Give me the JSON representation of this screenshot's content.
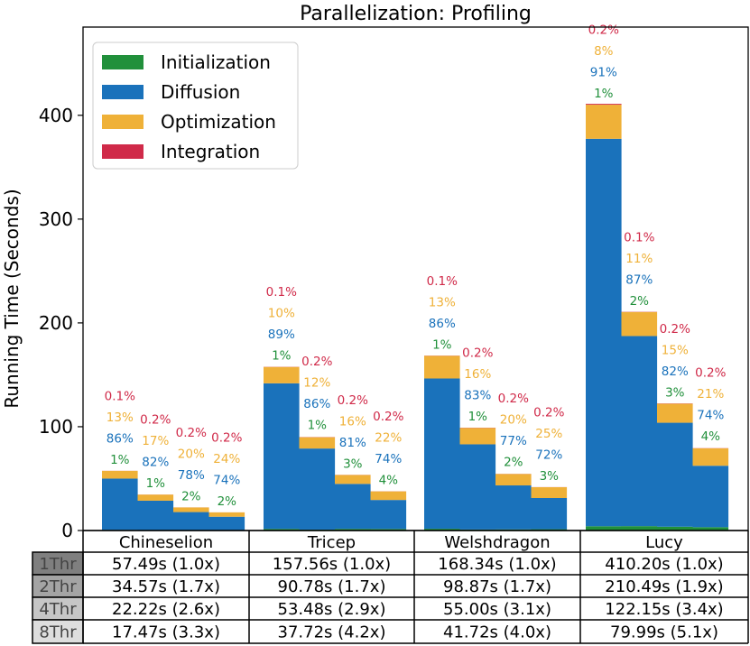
{
  "chart_data": {
    "type": "bar",
    "stacked": true,
    "title": "Parallelization: Profiling",
    "ylabel": "Running Time (Seconds)",
    "xlabel": "",
    "ylim": [
      0,
      485
    ],
    "yticks": [
      0,
      100,
      200,
      300,
      400
    ],
    "grid": false,
    "legend_position": "top-left",
    "colors": {
      "Initialization": "#21903b",
      "Diffusion": "#1a72bb",
      "Optimization": "#efb138",
      "Integration": "#d02a49"
    },
    "series_order": [
      "Initialization",
      "Diffusion",
      "Optimization",
      "Integration"
    ],
    "legend": [
      "Initialization",
      "Diffusion",
      "Optimization",
      "Integration"
    ],
    "thread_labels": [
      "1Thr",
      "2Thr",
      "4Thr",
      "8Thr"
    ],
    "groups": [
      {
        "name": "Chineselion",
        "bars": [
          {
            "total": 57.49,
            "cell": "57.49s (1.0x)",
            "Initialization": 0.57,
            "Diffusion": 49.44,
            "Optimization": 7.47,
            "Integration": 0.06,
            "pct": {
              "Initialization": "1%",
              "Diffusion": "86%",
              "Optimization": "13%",
              "Integration": "0.1%"
            }
          },
          {
            "total": 34.57,
            "cell": "34.57s (1.7x)",
            "Initialization": 0.35,
            "Diffusion": 28.35,
            "Optimization": 5.88,
            "Integration": 0.07,
            "pct": {
              "Initialization": "1%",
              "Diffusion": "82%",
              "Optimization": "17%",
              "Integration": "0.2%"
            }
          },
          {
            "total": 22.22,
            "cell": "22.22s (2.6x)",
            "Initialization": 0.44,
            "Diffusion": 17.33,
            "Optimization": 4.44,
            "Integration": 0.04,
            "pct": {
              "Initialization": "2%",
              "Diffusion": "78%",
              "Optimization": "20%",
              "Integration": "0.2%"
            }
          },
          {
            "total": 17.47,
            "cell": "17.47s (3.3x)",
            "Initialization": 0.35,
            "Diffusion": 12.93,
            "Optimization": 4.19,
            "Integration": 0.03,
            "pct": {
              "Initialization": "2%",
              "Diffusion": "74%",
              "Optimization": "24%",
              "Integration": "0.2%"
            }
          }
        ]
      },
      {
        "name": "Tricep",
        "bars": [
          {
            "total": 157.56,
            "cell": "157.56s (1.0x)",
            "Initialization": 1.58,
            "Diffusion": 140.23,
            "Optimization": 15.76,
            "Integration": 0.16,
            "pct": {
              "Initialization": "1%",
              "Diffusion": "89%",
              "Optimization": "10%",
              "Integration": "0.1%"
            }
          },
          {
            "total": 90.78,
            "cell": "90.78s (1.7x)",
            "Initialization": 0.91,
            "Diffusion": 78.07,
            "Optimization": 10.89,
            "Integration": 0.18,
            "pct": {
              "Initialization": "1%",
              "Diffusion": "86%",
              "Optimization": "12%",
              "Integration": "0.2%"
            }
          },
          {
            "total": 53.48,
            "cell": "53.48s (2.9x)",
            "Initialization": 1.6,
            "Diffusion": 43.32,
            "Optimization": 8.56,
            "Integration": 0.11,
            "pct": {
              "Initialization": "3%",
              "Diffusion": "81%",
              "Optimization": "16%",
              "Integration": "0.2%"
            }
          },
          {
            "total": 37.72,
            "cell": "37.72s (4.2x)",
            "Initialization": 1.51,
            "Diffusion": 27.91,
            "Optimization": 8.3,
            "Integration": 0.08,
            "pct": {
              "Initialization": "4%",
              "Diffusion": "74%",
              "Optimization": "22%",
              "Integration": "0.2%"
            }
          }
        ]
      },
      {
        "name": "Welshdragon",
        "bars": [
          {
            "total": 168.34,
            "cell": "168.34s (1.0x)",
            "Initialization": 1.68,
            "Diffusion": 144.77,
            "Optimization": 21.88,
            "Integration": 0.17,
            "pct": {
              "Initialization": "1%",
              "Diffusion": "86%",
              "Optimization": "13%",
              "Integration": "0.1%"
            }
          },
          {
            "total": 98.87,
            "cell": "98.87s (1.7x)",
            "Initialization": 0.99,
            "Diffusion": 82.06,
            "Optimization": 15.82,
            "Integration": 0.2,
            "pct": {
              "Initialization": "1%",
              "Diffusion": "83%",
              "Optimization": "16%",
              "Integration": "0.2%"
            }
          },
          {
            "total": 55.0,
            "cell": "55.00s (3.1x)",
            "Initialization": 1.1,
            "Diffusion": 42.35,
            "Optimization": 11.0,
            "Integration": 0.11,
            "pct": {
              "Initialization": "2%",
              "Diffusion": "77%",
              "Optimization": "20%",
              "Integration": "0.2%"
            }
          },
          {
            "total": 41.72,
            "cell": "41.72s (4.0x)",
            "Initialization": 1.25,
            "Diffusion": 30.04,
            "Optimization": 10.43,
            "Integration": 0.08,
            "pct": {
              "Initialization": "3%",
              "Diffusion": "72%",
              "Optimization": "25%",
              "Integration": "0.2%"
            }
          }
        ]
      },
      {
        "name": "Lucy",
        "bars": [
          {
            "total": 410.2,
            "cell": "410.20s (1.0x)",
            "Initialization": 4.1,
            "Diffusion": 373.28,
            "Optimization": 32.82,
            "Integration": 0.82,
            "pct": {
              "Initialization": "1%",
              "Diffusion": "91%",
              "Optimization": "8%",
              "Integration": "0.2%"
            }
          },
          {
            "total": 210.49,
            "cell": "210.49s (1.9x)",
            "Initialization": 4.21,
            "Diffusion": 183.13,
            "Optimization": 23.15,
            "Integration": 0.21,
            "pct": {
              "Initialization": "2%",
              "Diffusion": "87%",
              "Optimization": "11%",
              "Integration": "0.1%"
            }
          },
          {
            "total": 122.15,
            "cell": "122.15s (3.4x)",
            "Initialization": 3.66,
            "Diffusion": 100.16,
            "Optimization": 18.32,
            "Integration": 0.24,
            "pct": {
              "Initialization": "3%",
              "Diffusion": "82%",
              "Optimization": "15%",
              "Integration": "0.2%"
            }
          },
          {
            "total": 79.99,
            "cell": "79.99s (5.1x)",
            "Initialization": 3.2,
            "Diffusion": 59.19,
            "Optimization": 16.8,
            "Integration": 0.16,
            "pct": {
              "Initialization": "4%",
              "Diffusion": "74%",
              "Optimization": "21%",
              "Integration": "0.2%"
            }
          }
        ]
      }
    ]
  }
}
